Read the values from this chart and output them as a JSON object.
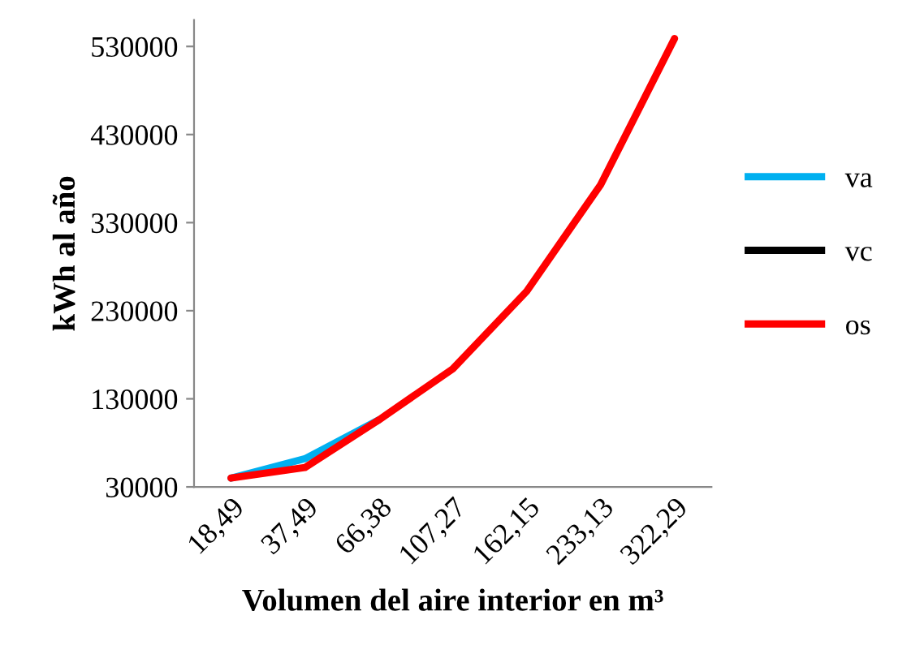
{
  "chart_data": {
    "type": "line",
    "xlabel": "Volumen del aire interior en m³",
    "ylabel": "kWh al año",
    "categories": [
      "18,49",
      "37,49",
      "66,38",
      "107,27",
      "162,15",
      "233,13",
      "322,29"
    ],
    "series": [
      {
        "name": "va",
        "color": "#00b0f0",
        "values": [
          40000,
          62000,
          106000,
          null,
          null,
          null,
          null
        ]
      },
      {
        "name": "vc",
        "color": "#000000",
        "values": [
          null,
          null,
          null,
          null,
          null,
          null,
          null
        ]
      },
      {
        "name": "os",
        "color": "#ff0000",
        "values": [
          40000,
          52000,
          106000,
          164000,
          252000,
          373000,
          539000
        ]
      }
    ],
    "ylim": [
      30000,
      560000
    ],
    "yticks": [
      30000,
      130000,
      230000,
      330000,
      430000,
      530000
    ],
    "grid": false,
    "legend": "right",
    "marker": "none"
  }
}
